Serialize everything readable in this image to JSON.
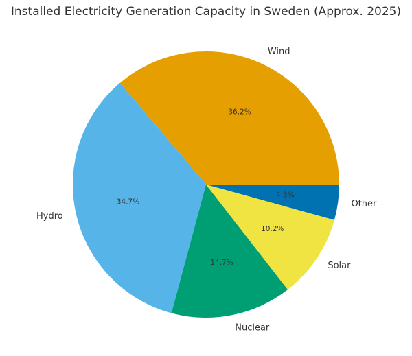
{
  "chart_data": {
    "type": "pie",
    "title": "Installed Electricity Generation Capacity in Sweden (Approx. 2025)",
    "slices": [
      {
        "label": "Wind",
        "value": 36.2,
        "pct_label": "36.2%",
        "color": "#E69F00"
      },
      {
        "label": "Hydro",
        "value": 34.7,
        "pct_label": "34.7%",
        "color": "#56B4E9"
      },
      {
        "label": "Nuclear",
        "value": 14.7,
        "pct_label": "14.7%",
        "color": "#009E73"
      },
      {
        "label": "Solar",
        "value": 10.2,
        "pct_label": "10.2%",
        "color": "#F0E442"
      },
      {
        "label": "Other",
        "value": 4.3,
        "pct_label": "4.3%",
        "color": "#0072B2"
      }
    ],
    "start_angle_deg": 0,
    "direction": "counterclockwise",
    "legend": "none"
  }
}
